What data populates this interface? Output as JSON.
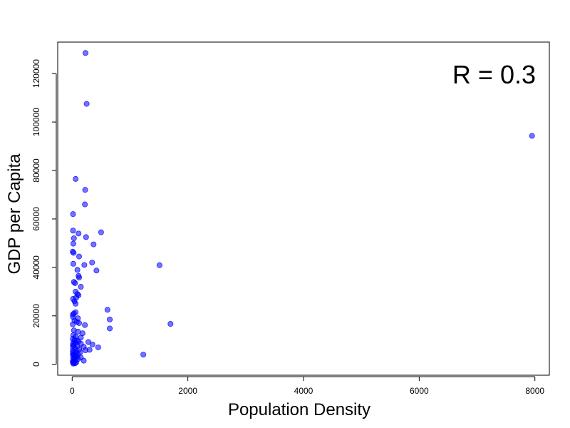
{
  "chart_data": {
    "type": "scatter",
    "title": "",
    "xlabel": "Population Density",
    "ylabel": "GDP per Capita",
    "xlim": [
      -250,
      8250
    ],
    "ylim": [
      -4500,
      133000
    ],
    "xticks": [
      0,
      2000,
      4000,
      6000,
      8000
    ],
    "yticks": [
      0,
      20000,
      40000,
      60000,
      80000,
      100000,
      120000
    ],
    "grid": false,
    "annotation": "R =  0.3",
    "annotation_position": "top-right",
    "point_color": "#0000ff",
    "series": [
      {
        "points": [
          [
            230,
            128500
          ],
          [
            250,
            107500
          ],
          [
            7950,
            94300
          ],
          [
            60,
            76500
          ],
          [
            225,
            72000
          ],
          [
            220,
            66000
          ],
          [
            15,
            62000
          ],
          [
            15,
            55200
          ],
          [
            500,
            54500
          ],
          [
            110,
            54000
          ],
          [
            30,
            52000
          ],
          [
            240,
            52500
          ],
          [
            20,
            49800
          ],
          [
            370,
            49500
          ],
          [
            10,
            46500
          ],
          [
            25,
            46000
          ],
          [
            120,
            44500
          ],
          [
            1510,
            40900
          ],
          [
            20,
            41500
          ],
          [
            210,
            41000
          ],
          [
            345,
            42000
          ],
          [
            90,
            39000
          ],
          [
            420,
            38700
          ],
          [
            110,
            36500
          ],
          [
            120,
            35800
          ],
          [
            30,
            34000
          ],
          [
            50,
            33500
          ],
          [
            150,
            32000
          ],
          [
            60,
            30000
          ],
          [
            90,
            29000
          ],
          [
            110,
            28500
          ],
          [
            70,
            27500
          ],
          [
            15,
            27000
          ],
          [
            40,
            26000
          ],
          [
            60,
            25000
          ],
          [
            610,
            22500
          ],
          [
            10,
            20500
          ],
          [
            30,
            21000
          ],
          [
            60,
            21500
          ],
          [
            15,
            19500
          ],
          [
            100,
            19000
          ],
          [
            650,
            18500
          ],
          [
            40,
            18000
          ],
          [
            80,
            17500
          ],
          [
            120,
            17000
          ],
          [
            1700,
            16700
          ],
          [
            10,
            16500
          ],
          [
            220,
            16200
          ],
          [
            650,
            14800
          ],
          [
            30,
            14000
          ],
          [
            100,
            13500
          ],
          [
            180,
            12800
          ],
          [
            20,
            12000
          ],
          [
            60,
            11500
          ],
          [
            150,
            11000
          ],
          [
            10,
            10500
          ],
          [
            40,
            10000
          ],
          [
            80,
            9800
          ],
          [
            110,
            9500
          ],
          [
            280,
            9200
          ],
          [
            20,
            9000
          ],
          [
            60,
            8800
          ],
          [
            150,
            8500
          ],
          [
            350,
            8200
          ],
          [
            10,
            8000
          ],
          [
            30,
            7800
          ],
          [
            90,
            7500
          ],
          [
            200,
            7200
          ],
          [
            450,
            7000
          ],
          [
            15,
            6800
          ],
          [
            50,
            6500
          ],
          [
            120,
            6200
          ],
          [
            300,
            6000
          ],
          [
            230,
            5800
          ],
          [
            10,
            5500
          ],
          [
            70,
            5200
          ],
          [
            140,
            5000
          ],
          [
            20,
            4800
          ],
          [
            60,
            4500
          ],
          [
            1230,
            4000
          ],
          [
            10,
            4200
          ],
          [
            100,
            4000
          ],
          [
            30,
            3800
          ],
          [
            50,
            3500
          ],
          [
            80,
            3200
          ],
          [
            15,
            3000
          ],
          [
            150,
            2800
          ],
          [
            40,
            2500
          ],
          [
            100,
            2200
          ],
          [
            20,
            2000
          ],
          [
            60,
            1800
          ],
          [
            200,
            1500
          ],
          [
            10,
            1200
          ],
          [
            30,
            1000
          ],
          [
            70,
            800
          ],
          [
            15,
            600
          ],
          [
            50,
            400
          ],
          [
            20,
            300
          ]
        ]
      }
    ]
  }
}
